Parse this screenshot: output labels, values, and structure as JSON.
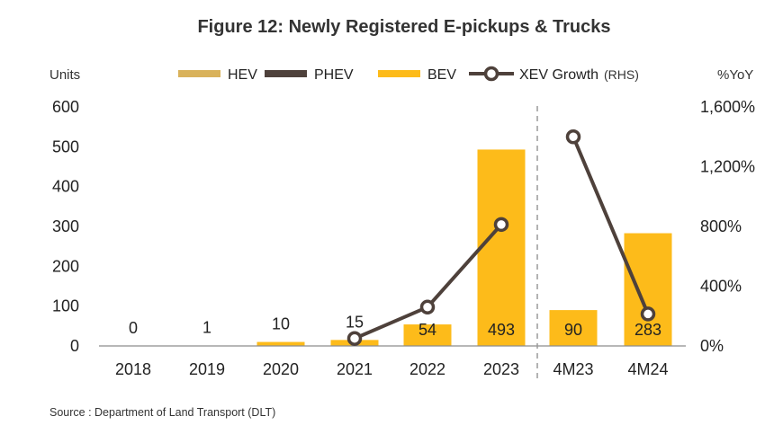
{
  "chart_data": {
    "type": "bar",
    "title": "Figure 12: Newly Registered E-pickups & Trucks",
    "ylabel_left": "Units",
    "ylabel_right": "%YoY",
    "categories": [
      "2018",
      "2019",
      "2020",
      "2021",
      "2022",
      "2023",
      "4M23",
      "4M24"
    ],
    "series": [
      {
        "name": "HEV",
        "kind": "bar",
        "color": "#d9b25b",
        "values": [
          0,
          0,
          0,
          0,
          0,
          0,
          0,
          0
        ]
      },
      {
        "name": "PHEV",
        "kind": "bar",
        "color": "#4e413b",
        "values": [
          0,
          0,
          0,
          0,
          0,
          0,
          0,
          0
        ]
      },
      {
        "name": "BEV",
        "kind": "bar",
        "color": "#fdbb1a",
        "values": [
          0,
          1,
          10,
          15,
          54,
          493,
          90,
          283
        ]
      },
      {
        "name": "XEV Growth",
        "name_suffix": "(RHS)",
        "kind": "line",
        "axis": "right",
        "color": "#4e413b",
        "values": [
          null,
          null,
          null,
          50,
          260,
          813,
          1400,
          214
        ]
      }
    ],
    "data_labels": [
      "0",
      "1",
      "10",
      "15",
      "54",
      "493",
      "90",
      "283"
    ],
    "ylim_left": [
      0,
      600
    ],
    "yticks_left": [
      "0",
      "100",
      "200",
      "300",
      "400",
      "500",
      "600"
    ],
    "ylim_right": [
      0,
      1600
    ],
    "yticks_right": [
      "0%",
      "400%",
      "800%",
      "1,200%",
      "1,600%"
    ],
    "grid": false,
    "legend_position": "top",
    "separator_after": "2023"
  },
  "source": "Source : Department of Land Transport (DLT)"
}
